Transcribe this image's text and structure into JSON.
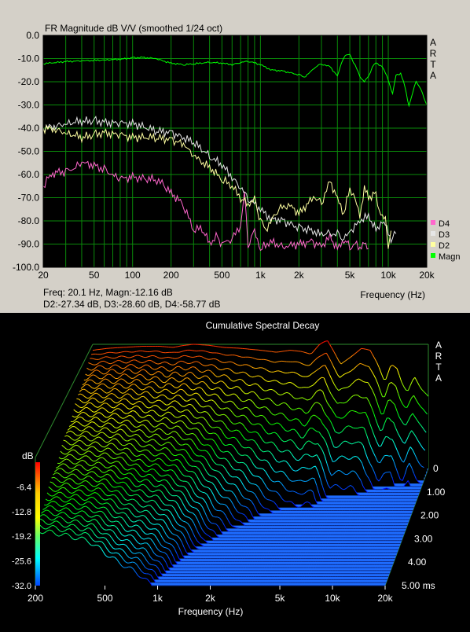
{
  "chart_data": [
    {
      "type": "line",
      "title": "FR Magnitude dB V/V (smoothed 1/24 oct)",
      "xlabel": "Frequency (Hz)",
      "ylabel": "",
      "x_scale": "log",
      "xlim": [
        20,
        20000
      ],
      "ylim": [
        -100,
        0
      ],
      "grid": true,
      "x_tick_values": [
        20,
        50,
        100,
        200,
        500,
        1000,
        2000,
        5000,
        10000,
        20000
      ],
      "x_tick_labels": [
        "20",
        "50",
        "100",
        "200",
        "500",
        "1k",
        "2k",
        "5k",
        "10k",
        "20k"
      ],
      "y_tick_values": [
        0,
        -10,
        -20,
        -30,
        -40,
        -50,
        -60,
        -70,
        -80,
        -90,
        -100
      ],
      "y_tick_labels": [
        "0.0",
        "-10.0",
        "-20.0",
        "-30.0",
        "-40.0",
        "-50.0",
        "-60.0",
        "-70.0",
        "-80.0",
        "-90.0",
        "-100.0"
      ],
      "brand": "ARTA",
      "legend_position": "right-bottom",
      "readout": {
        "line1": "Freq: 20.1 Hz, Magn:-12.16 dB",
        "line2": "D2:-27.34 dB, D3:-28.60 dB, D4:-58.77 dB"
      },
      "series": [
        {
          "name": "Magn",
          "color": "#00ff00",
          "points": [
            [
              20,
              -12.2
            ],
            [
              30,
              -11.3
            ],
            [
              40,
              -11.0
            ],
            [
              60,
              -10.6
            ],
            [
              80,
              -10.3
            ],
            [
              100,
              -9.7
            ],
            [
              120,
              -9.5
            ],
            [
              150,
              -10.0
            ],
            [
              200,
              -12.0
            ],
            [
              250,
              -12.6
            ],
            [
              300,
              -12.3
            ],
            [
              400,
              -11.6
            ],
            [
              500,
              -12.0
            ],
            [
              600,
              -12.6
            ],
            [
              700,
              -11.8
            ],
            [
              800,
              -11.1
            ],
            [
              1000,
              -12.6
            ],
            [
              1200,
              -14.8
            ],
            [
              1500,
              -15.4
            ],
            [
              2000,
              -17.0
            ],
            [
              2200,
              -18.0
            ],
            [
              2500,
              -15.5
            ],
            [
              2700,
              -13.5
            ],
            [
              3000,
              -12.3
            ],
            [
              3500,
              -13.5
            ],
            [
              4000,
              -17.5
            ],
            [
              4300,
              -12.0
            ],
            [
              4600,
              -8.5
            ],
            [
              5000,
              -8.3
            ],
            [
              5500,
              -13.0
            ],
            [
              6000,
              -17.5
            ],
            [
              6500,
              -20.2
            ],
            [
              7000,
              -17.5
            ],
            [
              7500,
              -13.8
            ],
            [
              8000,
              -11.8
            ],
            [
              9000,
              -13.5
            ],
            [
              10000,
              -19.0
            ],
            [
              10800,
              -25.5
            ],
            [
              11500,
              -17.0
            ],
            [
              12500,
              -16.5
            ],
            [
              13500,
              -22.0
            ],
            [
              14500,
              -30.5
            ],
            [
              15500,
              -25.0
            ],
            [
              16500,
              -19.5
            ],
            [
              18000,
              -23.5
            ],
            [
              20000,
              -30.0
            ]
          ]
        },
        {
          "name": "D2",
          "color": "#ffffa0",
          "points": [
            [
              20,
              -40
            ],
            [
              25,
              -40.5
            ],
            [
              30,
              -42
            ],
            [
              40,
              -44
            ],
            [
              50,
              -43
            ],
            [
              60,
              -42
            ],
            [
              80,
              -43
            ],
            [
              100,
              -44
            ],
            [
              150,
              -44
            ],
            [
              200,
              -45
            ],
            [
              250,
              -47
            ],
            [
              300,
              -52
            ],
            [
              400,
              -57
            ],
            [
              500,
              -62
            ],
            [
              600,
              -65
            ],
            [
              700,
              -70
            ],
            [
              800,
              -73
            ],
            [
              900,
              -71
            ],
            [
              1000,
              -80
            ],
            [
              1100,
              -84
            ],
            [
              1200,
              -80
            ],
            [
              1400,
              -75
            ],
            [
              1700,
              -73
            ],
            [
              2000,
              -77
            ],
            [
              2300,
              -73
            ],
            [
              2600,
              -70
            ],
            [
              3000,
              -72
            ],
            [
              3500,
              -63
            ],
            [
              4000,
              -70
            ],
            [
              4500,
              -77
            ],
            [
              5000,
              -66
            ],
            [
              5500,
              -70
            ],
            [
              6000,
              -78
            ],
            [
              6500,
              -66
            ],
            [
              7000,
              -70
            ],
            [
              8000,
              -68
            ],
            [
              8500,
              -76
            ],
            [
              9500,
              -80
            ],
            [
              10000,
              -92
            ],
            [
              10500,
              -84
            ]
          ]
        },
        {
          "name": "D3",
          "color": "#e6e6e6",
          "points": [
            [
              20,
              -40
            ],
            [
              25,
              -39
            ],
            [
              30,
              -38
            ],
            [
              40,
              -37
            ],
            [
              50,
              -37
            ],
            [
              60,
              -37.5
            ],
            [
              80,
              -38
            ],
            [
              100,
              -38
            ],
            [
              150,
              -41
            ],
            [
              200,
              -42
            ],
            [
              300,
              -46
            ],
            [
              400,
              -52
            ],
            [
              500,
              -56
            ],
            [
              600,
              -61
            ],
            [
              700,
              -66
            ],
            [
              800,
              -70
            ],
            [
              1000,
              -75
            ],
            [
              1200,
              -79
            ],
            [
              1500,
              -80
            ],
            [
              2000,
              -83
            ],
            [
              2500,
              -84
            ],
            [
              3000,
              -86
            ],
            [
              3500,
              -85
            ],
            [
              4000,
              -86
            ],
            [
              4500,
              -88
            ],
            [
              5000,
              -85
            ],
            [
              6000,
              -80
            ],
            [
              7000,
              -78
            ],
            [
              8000,
              -84
            ],
            [
              9000,
              -80
            ],
            [
              10000,
              -84
            ],
            [
              10500,
              -88
            ],
            [
              11500,
              -85
            ]
          ]
        },
        {
          "name": "D4",
          "color": "#ff66cc",
          "points": [
            [
              20,
              -65
            ],
            [
              22,
              -61
            ],
            [
              25,
              -59
            ],
            [
              30,
              -59
            ],
            [
              35,
              -57
            ],
            [
              40,
              -55
            ],
            [
              50,
              -56
            ],
            [
              60,
              -58
            ],
            [
              70,
              -60
            ],
            [
              80,
              -62
            ],
            [
              100,
              -61
            ],
            [
              120,
              -62
            ],
            [
              150,
              -62
            ],
            [
              170,
              -64
            ],
            [
              200,
              -68
            ],
            [
              250,
              -73
            ],
            [
              300,
              -84
            ],
            [
              350,
              -83
            ],
            [
              400,
              -90
            ],
            [
              450,
              -87
            ],
            [
              500,
              -90
            ],
            [
              600,
              -88
            ],
            [
              700,
              -82
            ],
            [
              750,
              -68
            ],
            [
              800,
              -90
            ],
            [
              900,
              -84
            ],
            [
              1000,
              -92
            ],
            [
              1200,
              -89
            ],
            [
              1500,
              -91
            ],
            [
              2000,
              -90
            ],
            [
              2500,
              -89
            ],
            [
              3000,
              -91
            ],
            [
              3500,
              -87
            ],
            [
              4000,
              -92
            ],
            [
              4500,
              -88
            ],
            [
              5000,
              -91
            ],
            [
              5500,
              -90
            ],
            [
              6000,
              -92
            ],
            [
              6500,
              -89
            ],
            [
              7000,
              -93
            ]
          ]
        }
      ]
    },
    {
      "type": "waterfall",
      "title": "Cumulative Spectral Decay",
      "xlabel": "Frequency (Hz)",
      "x_scale": "log",
      "xlim": [
        200,
        20000
      ],
      "x_tick_values": [
        200,
        500,
        1000,
        2000,
        5000,
        10000,
        20000
      ],
      "x_tick_labels": [
        "200",
        "500",
        "1k",
        "2k",
        "5k",
        "10k",
        "20k"
      ],
      "zlabel": "dB",
      "zlim": [
        -32,
        0
      ],
      "colorbar_labels": [
        "-6.4",
        "-12.8",
        "-19.2",
        "-25.6",
        "-32.0"
      ],
      "time_labels": [
        "0",
        "1.00",
        "2.00",
        "3.00",
        "4.00",
        "5.00 ms"
      ],
      "time_range_ms": [
        0,
        5
      ],
      "slices": 40,
      "floor_db": -32,
      "brand": "ARTA",
      "initial_response": [
        [
          200,
          -2.5
        ],
        [
          250,
          -2.0
        ],
        [
          300,
          -1.8
        ],
        [
          400,
          -1.5
        ],
        [
          500,
          -1.5
        ],
        [
          600,
          -1.8
        ],
        [
          700,
          -1.3
        ],
        [
          800,
          -1.0
        ],
        [
          1000,
          -1.3
        ],
        [
          1200,
          -1.8
        ],
        [
          1500,
          -2.0
        ],
        [
          2000,
          -2.5
        ],
        [
          2500,
          -3.0
        ],
        [
          3000,
          -2.5
        ],
        [
          3500,
          -2.8
        ],
        [
          4000,
          -3.5
        ],
        [
          4500,
          -1.0
        ],
        [
          5000,
          0.0
        ],
        [
          5500,
          -3.0
        ],
        [
          6000,
          -6.0
        ],
        [
          7000,
          -4.0
        ],
        [
          8000,
          -2.0
        ],
        [
          9000,
          -2.5
        ],
        [
          10000,
          -6.0
        ],
        [
          11000,
          -10.5
        ],
        [
          12000,
          -6.0
        ],
        [
          13000,
          -7.0
        ],
        [
          14000,
          -11.0
        ],
        [
          15000,
          -13.0
        ],
        [
          16500,
          -9.0
        ],
        [
          18000,
          -12.0
        ],
        [
          20000,
          -14.0
        ]
      ],
      "decay_ms": [
        [
          200,
          2.7
        ],
        [
          300,
          2.4
        ],
        [
          400,
          2.2
        ],
        [
          500,
          1.9
        ],
        [
          700,
          1.6
        ],
        [
          900,
          1.4
        ],
        [
          1000,
          1.3
        ],
        [
          1500,
          0.9
        ],
        [
          2000,
          0.75
        ],
        [
          3000,
          0.55
        ],
        [
          4000,
          0.5
        ],
        [
          5000,
          0.45
        ],
        [
          8000,
          0.35
        ],
        [
          12000,
          0.3
        ],
        [
          20000,
          0.3
        ]
      ]
    }
  ]
}
